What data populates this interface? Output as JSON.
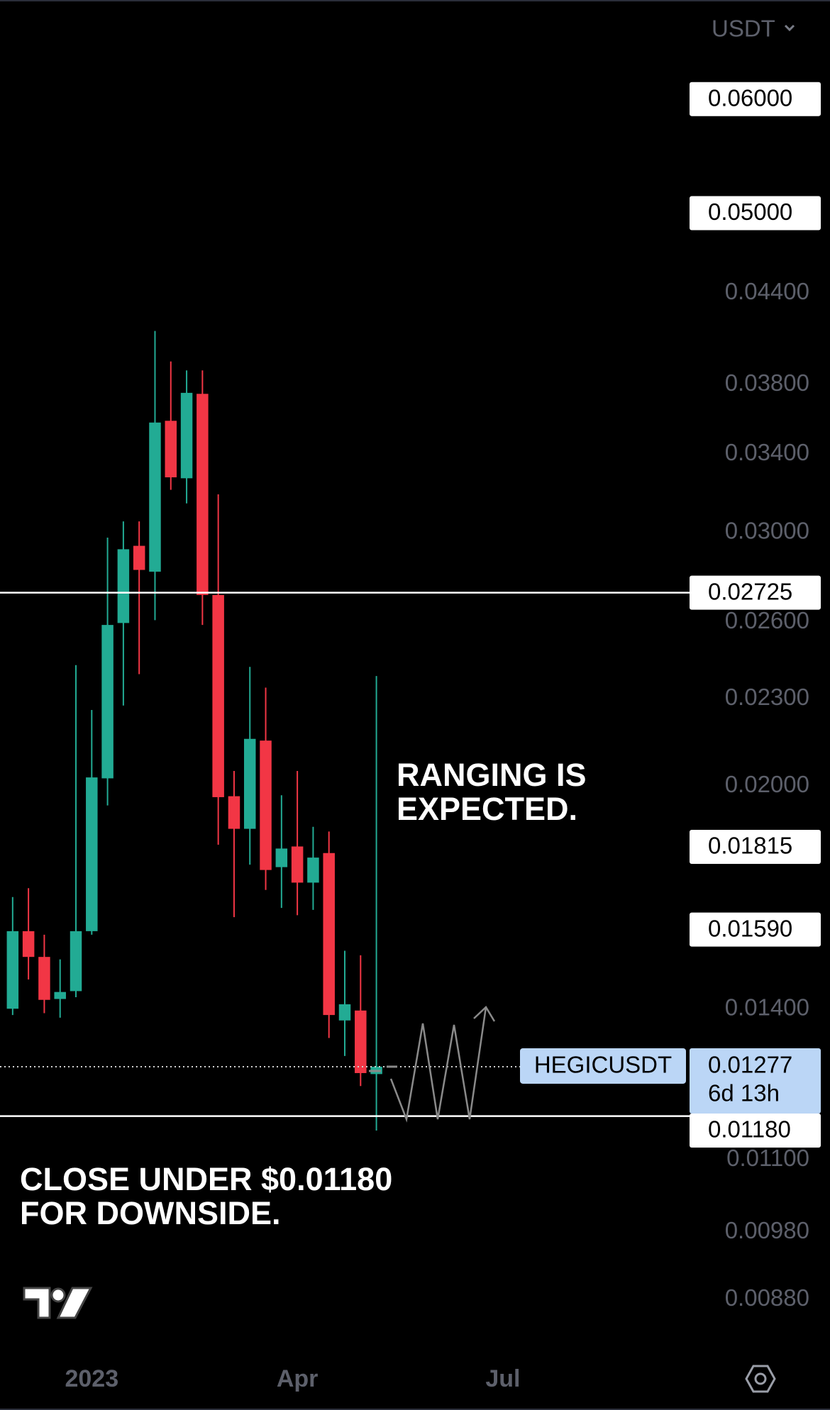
{
  "chart_data": {
    "type": "candlestick",
    "currency": "USDT",
    "symbol": "HEGICUSDT",
    "log_scale": true,
    "up_color": "#22ab94",
    "down_color": "#f23645",
    "x": [
      -5,
      -4,
      -3,
      -2,
      -1,
      0,
      1,
      2,
      3,
      4,
      5,
      6,
      7,
      8,
      9,
      10,
      11,
      12,
      13,
      14,
      15,
      16,
      17,
      18
    ],
    "open": [
      0.01401,
      0.01586,
      0.01522,
      0.01423,
      0.01441,
      0.01586,
      0.02025,
      0.02596,
      0.02937,
      0.02818,
      0.03587,
      0.03272,
      0.03745,
      0.02715,
      0.01968,
      0.01868,
      0.02151,
      0.01757,
      0.01816,
      0.01714,
      0.01797,
      0.01375,
      0.01397,
      0.01262
    ],
    "high": [
      0.01675,
      0.01699,
      0.01577,
      0.01516,
      0.02427,
      0.02259,
      0.02976,
      0.03054,
      0.03054,
      0.04141,
      0.03944,
      0.03888,
      0.03888,
      0.03189,
      0.02049,
      0.0242,
      0.02341,
      0.01971,
      0.02049,
      0.01874,
      0.0186,
      0.01537,
      0.01526,
      0.02385
    ],
    "low": [
      0.01387,
      0.01468,
      0.01391,
      0.01381,
      0.01427,
      0.01577,
      0.01939,
      0.02275,
      0.02392,
      0.02608,
      0.03212,
      0.03143,
      0.02588,
      0.01821,
      0.01622,
      0.01764,
      0.01694,
      0.01646,
      0.01627,
      0.01641,
      0.01337,
      0.01299,
      0.01238,
      0.01153
    ],
    "close": [
      0.01586,
      0.01522,
      0.01421,
      0.01439,
      0.01586,
      0.02028,
      0.02588,
      0.02921,
      0.02826,
      0.03577,
      0.03277,
      0.03751,
      0.02715,
      0.01965,
      0.01868,
      0.02157,
      0.01749,
      0.0181,
      0.01714,
      0.01784,
      0.01387,
      0.01411,
      0.01264,
      0.01277
    ],
    "xlim": [
      -5.8,
      37.8
    ],
    "xticks": [
      {
        "value": 0,
        "label": "2023"
      },
      {
        "value": 13,
        "label": "Apr"
      },
      {
        "value": 26,
        "label": "Jul"
      }
    ],
    "ylim": [
      0.00814,
      0.0703
    ],
    "yticks": [
      {
        "value": 0.044,
        "label": "0.04400"
      },
      {
        "value": 0.038,
        "label": "0.03800"
      },
      {
        "value": 0.034,
        "label": "0.03400"
      },
      {
        "value": 0.03,
        "label": "0.03000"
      },
      {
        "value": 0.026,
        "label": "0.02600"
      },
      {
        "value": 0.023,
        "label": "0.02300"
      },
      {
        "value": 0.02,
        "label": "0.02000"
      },
      {
        "value": 0.014,
        "label": "0.01400"
      },
      {
        "value": 0.011,
        "label": "0.01100"
      },
      {
        "value": 0.0098,
        "label": "0.00980"
      },
      {
        "value": 0.0088,
        "label": "0.00880"
      }
    ],
    "zones": [
      {
        "from": 0.05,
        "to": 0.06
      },
      {
        "from": 0.0159,
        "to": 0.01815
      }
    ],
    "levels": [
      {
        "value": 0.06,
        "label": "0.06000",
        "line": false
      },
      {
        "value": 0.05,
        "label": "0.05000",
        "line": false
      },
      {
        "value": 0.02725,
        "label": "0.02725",
        "line": true
      },
      {
        "value": 0.01815,
        "label": "0.01815",
        "line": false
      },
      {
        "value": 0.0159,
        "label": "0.01590",
        "line": false
      },
      {
        "value": 0.0118,
        "label": "0.01180",
        "line": true
      }
    ],
    "current": {
      "value": 0.01277,
      "label": "0.01277",
      "countdown": "6d 13h",
      "color": "#bbd6f6"
    },
    "annotations": [
      {
        "lines": [
          "RANGING IS",
          "EXPECTED."
        ]
      },
      {
        "lines": [
          "CLOSE UNDER $0.01180",
          "FOR DOWNSIDE."
        ]
      }
    ]
  }
}
